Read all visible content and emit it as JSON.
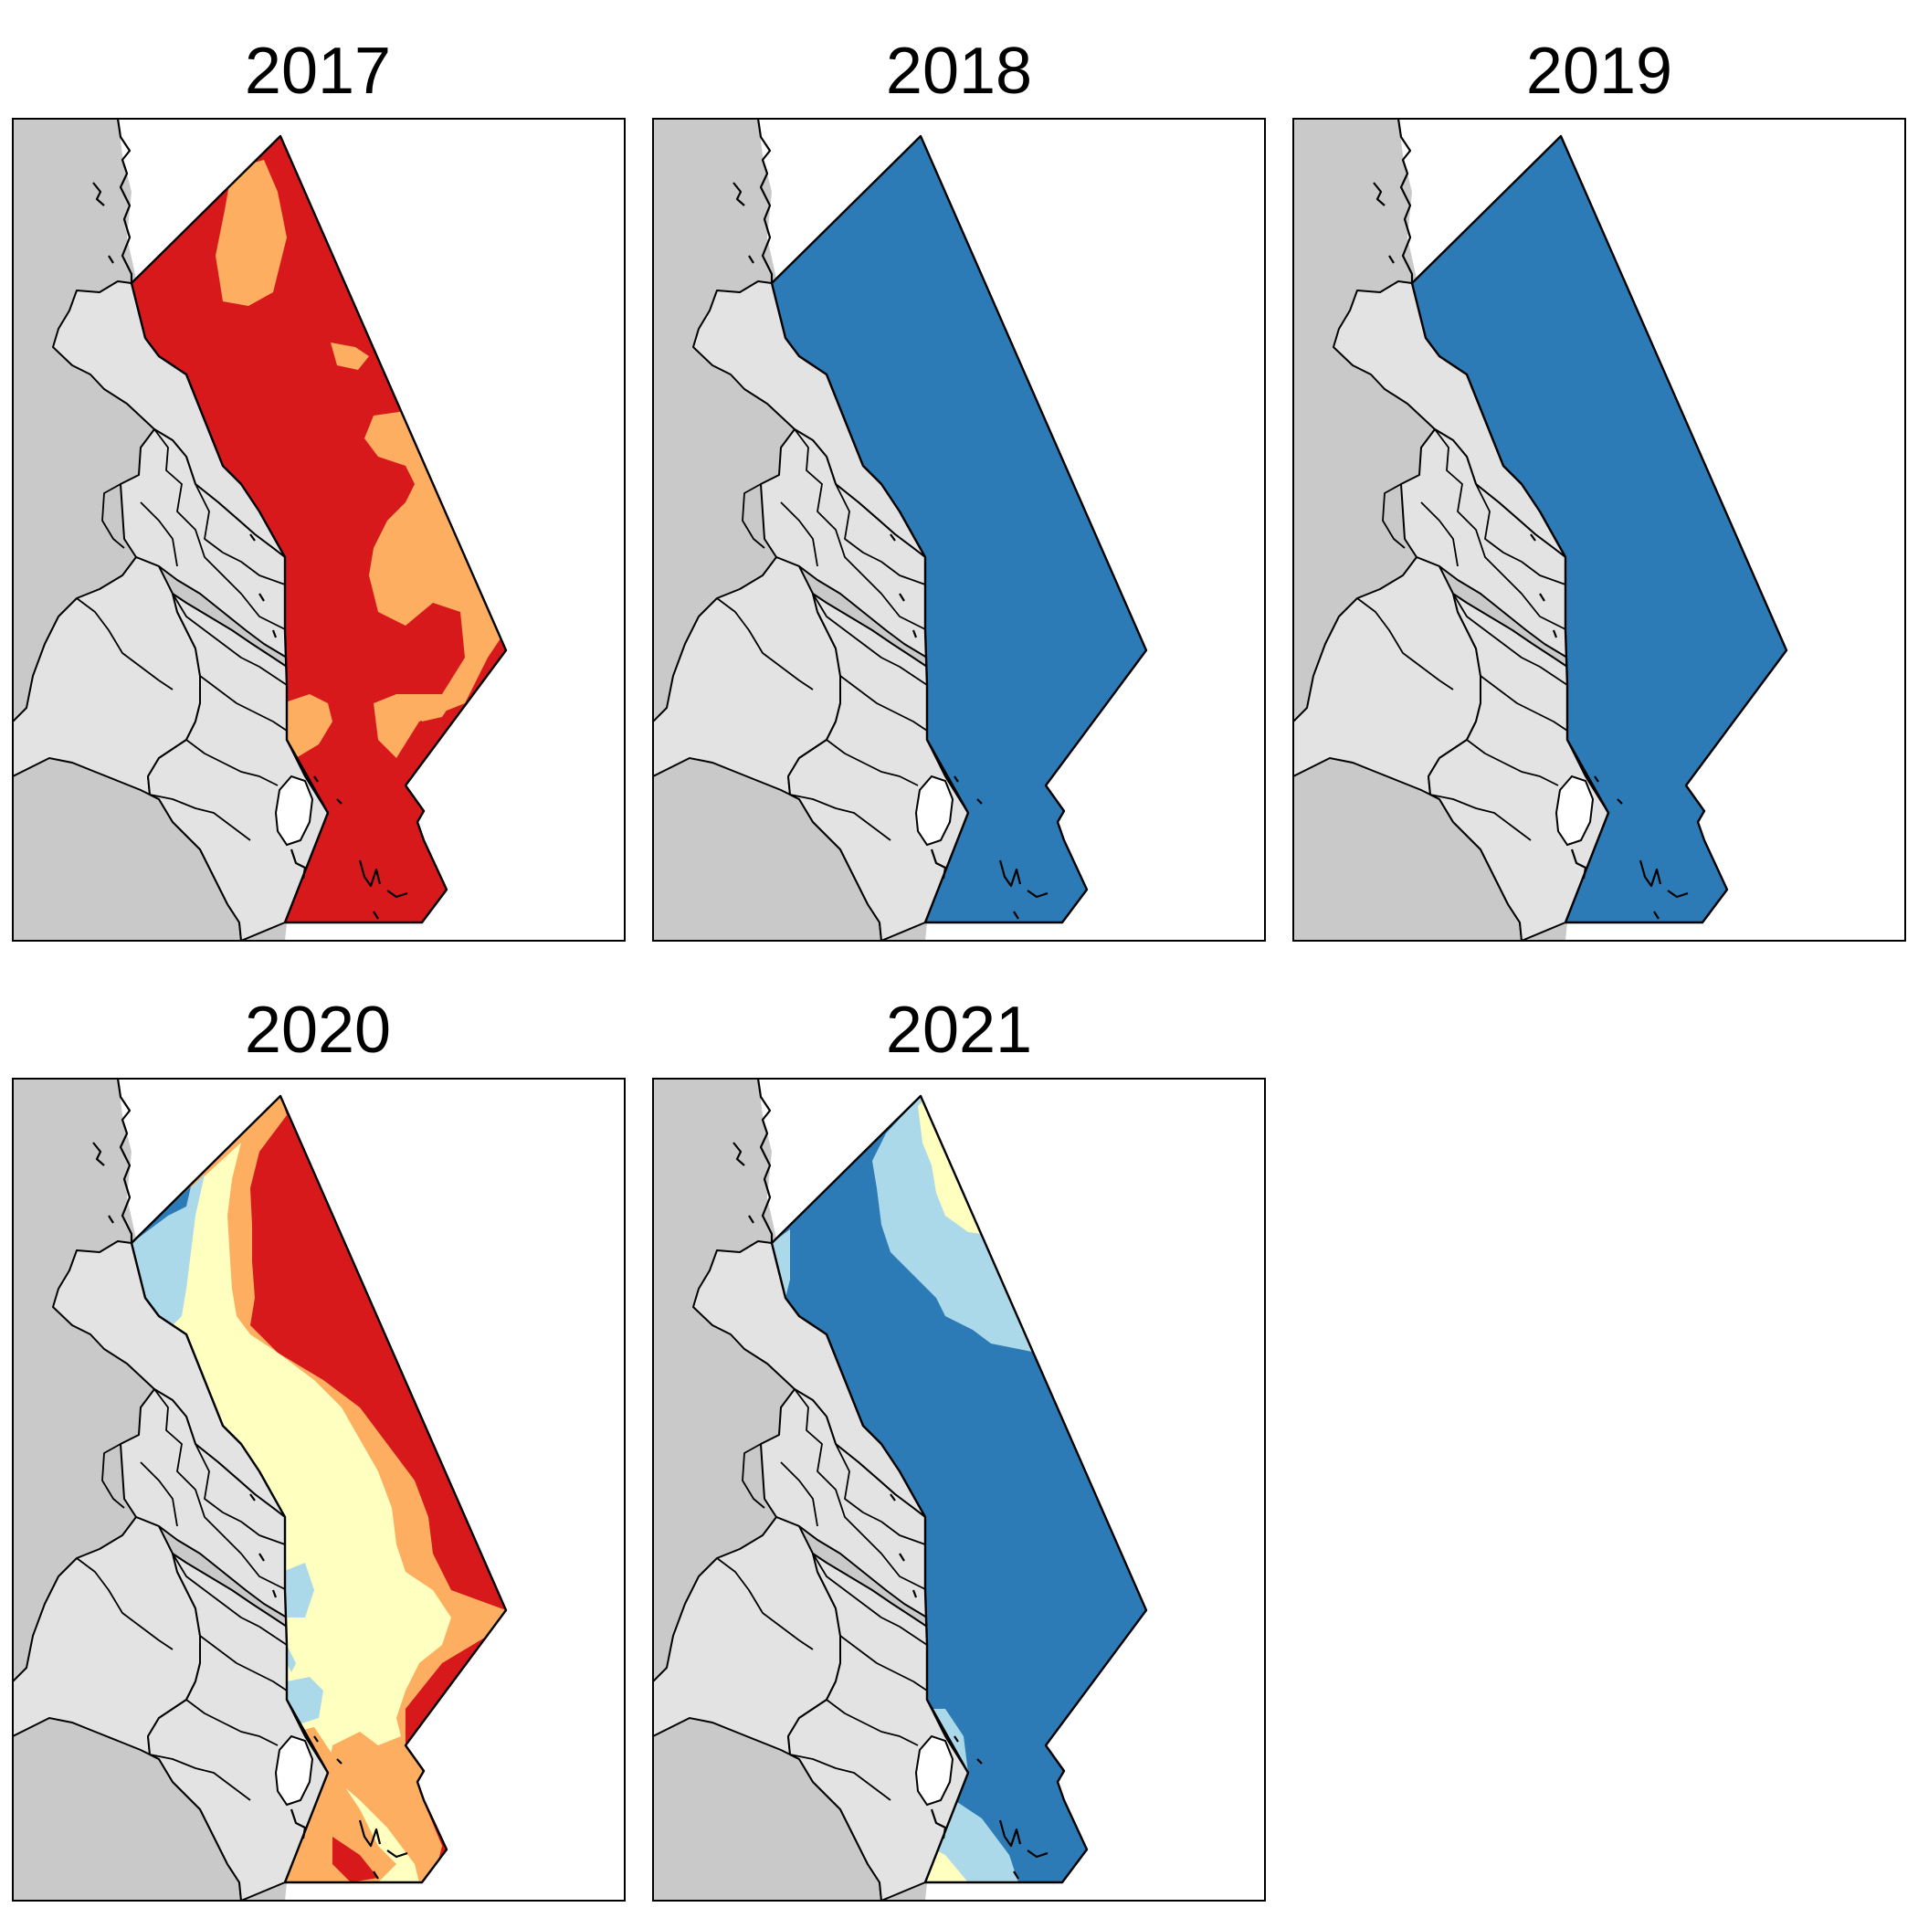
{
  "panels": [
    {
      "title": "2017",
      "condition": "red-orange"
    },
    {
      "title": "2018",
      "condition": "dark-blue"
    },
    {
      "title": "2019",
      "condition": "dark-blue"
    },
    {
      "title": "2020",
      "condition": "mixed-warm"
    },
    {
      "title": "2021",
      "condition": "mixed-cool"
    }
  ],
  "colors": {
    "red": "#d7191c",
    "orange": "#fdae61",
    "light_yellow": "#ffffbf",
    "light_blue": "#abd9e9",
    "dark_blue": "#2c7bb6",
    "land_outer": "#c9c9c9",
    "catchment": "#e3e3e3"
  }
}
